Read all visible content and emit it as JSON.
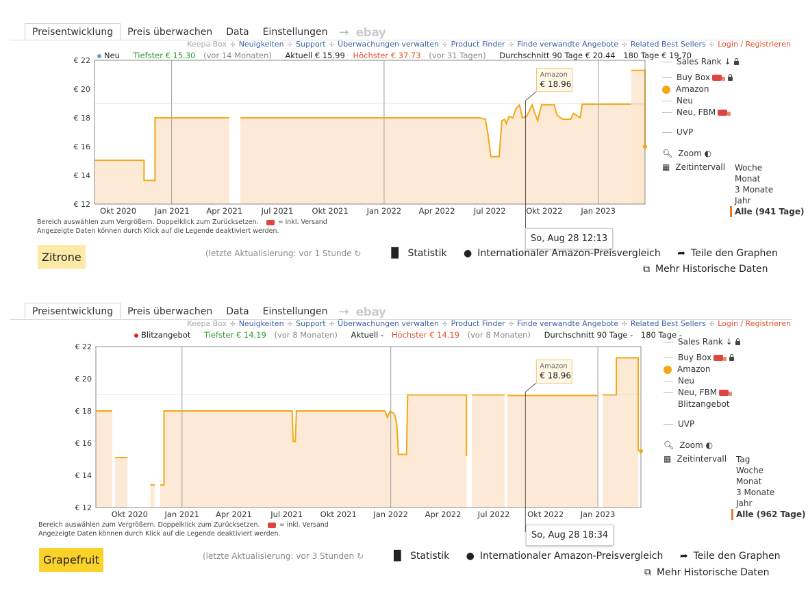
{
  "tabs": [
    "Preisentwicklung",
    "Preis überwachen",
    "Data",
    "Einstellungen"
  ],
  "tabs_extra": {
    "arrow": "→",
    "ebay": "ebay"
  },
  "links": {
    "keepa_box": "Keepa Box",
    "news": "Neuigkeiten",
    "support": "Support",
    "manage": "Überwachungen verwalten",
    "finder": "Product Finder",
    "related_offers": "Finde verwandte Angebote",
    "related_best": "Related Best Sellers",
    "login": "Login / Registrieren"
  },
  "legend_common": {
    "sales_rank": "Sales Rank",
    "buy_box": "Buy Box",
    "amazon": "Amazon",
    "neu": "Neu",
    "fbm": "Neu, FBM",
    "blitz": "Blitzangebot",
    "uvp": "UVP",
    "zoom": "Zoom",
    "zeitintervall": "Zeitintervall"
  },
  "hint": {
    "line1a": "Bereich auswählen zum Vergrößern. Doppelklick zum Zurücksetzen.",
    "line1b": "= inkl. Versand",
    "line2": "Angezeigte Daten können durch Klick auf die Legende deaktiviert werden."
  },
  "actions": {
    "statistik": "Statistik",
    "vergleich": "Internationaler Amazon-Preisvergleich",
    "teile": "Teile den Graphen",
    "mehr": "Mehr Historische Daten"
  },
  "colors": {
    "amazon": "#f3a712",
    "fill": "#fde3c8",
    "lowest": "#2e9c2e",
    "highest": "#e0502a"
  },
  "panels": [
    {
      "stats": {
        "series_label": "Neu",
        "lowest_label": "Tiefster € 15.30",
        "lowest_ago": "(vor 14 Monaten)",
        "current": "Aktuell € 15.99",
        "highest_label": "Höchster € 37.73",
        "highest_ago": "(vor 31 Tagen)",
        "avg90": "Durchschnitt 90 Tage € 20.44",
        "avg180": "180 Tage € 19.70"
      },
      "intervals": [
        "Woche",
        "Monat",
        "3 Monate",
        "Jahr"
      ],
      "interval_selected": "Alle (941 Tage)",
      "tooltip": {
        "label": "Amazon",
        "value": "€ 18.96"
      },
      "date": "So, Aug 28 12:13",
      "product_name": "Zitrone",
      "name_bg": "#fde9a8",
      "updated": "(letzte Aktualisierung: vor 1 Stunde",
      "chart_data": {
        "type": "line",
        "y_ticks": [
          "€ 22",
          "€ 20",
          "€ 18",
          "€ 16",
          "€ 14",
          "€ 12"
        ],
        "ylim": [
          12,
          22
        ],
        "x_ticks": [
          "Okt 2020",
          "Jan 2021",
          "Apr 2021",
          "Jul 2021",
          "Okt 2021",
          "Jan 2022",
          "Apr 2022",
          "Jul 2022",
          "Okt 2022",
          "Jan 2023"
        ],
        "series": [
          {
            "name": "Amazon",
            "segments": [
              [
                [
                  0.0,
                  15.05
                ],
                [
                  0.09,
                  15.05
                ],
                [
                  0.09,
                  13.65
                ],
                [
                  0.11,
                  13.65
                ],
                [
                  0.11,
                  18.0
                ],
                [
                  0.245,
                  18.0
                ]
              ],
              [
                [
                  0.265,
                  18.0
                ],
                [
                  0.7,
                  18.0
                ],
                [
                  0.71,
                  17.9
                ],
                [
                  0.715,
                  16.8
                ],
                [
                  0.72,
                  15.3
                ],
                [
                  0.735,
                  15.3
                ],
                [
                  0.74,
                  17.8
                ],
                [
                  0.745,
                  17.9
                ],
                [
                  0.748,
                  17.6
                ],
                [
                  0.753,
                  18.1
                ],
                [
                  0.76,
                  18.0
                ],
                [
                  0.765,
                  18.6
                ],
                [
                  0.772,
                  18.9
                ],
                [
                  0.777,
                  18.0
                ],
                [
                  0.785,
                  18.1
                ],
                [
                  0.795,
                  18.9
                ],
                [
                  0.8,
                  18.3
                ],
                [
                  0.805,
                  17.8
                ],
                [
                  0.812,
                  18.9
                ],
                [
                  0.835,
                  18.9
                ],
                [
                  0.84,
                  18.2
                ],
                [
                  0.85,
                  17.9
                ],
                [
                  0.865,
                  17.9
                ],
                [
                  0.87,
                  18.3
                ],
                [
                  0.882,
                  18.0
                ],
                [
                  0.886,
                  18.95
                ],
                [
                  1.0,
                  18.95
                ]
              ]
            ]
          }
        ],
        "right_segment": [
          [
            1.0,
            21.3
          ],
          [
            1.0,
            16.0
          ]
        ],
        "hover_x": 0.765
      }
    },
    {
      "stats": {
        "series_label": "Blitzangebot",
        "lowest_label": "Tiefster € 14.19",
        "lowest_ago": "(vor 8 Monaten)",
        "current": "Aktuell -",
        "highest_label": "Höchster € 14.19",
        "highest_ago": "(vor 8 Monaten)",
        "avg90": "Durchschnitt 90 Tage -",
        "avg180": "180 Tage -"
      },
      "intervals": [
        "Tag",
        "Woche",
        "Monat",
        "3 Monate",
        "Jahr"
      ],
      "interval_selected": "Alle (962 Tage)",
      "tooltip": {
        "label": "Amazon",
        "value": "€ 18.96"
      },
      "date": "So, Aug 28 18:34",
      "product_name": "Grapefruit",
      "name_bg": "#fbd22a",
      "updated": "(letzte Aktualisierung: vor 3 Stunden",
      "chart_data": {
        "type": "line",
        "y_ticks": [
          "€ 22",
          "€ 20",
          "€ 18",
          "€ 16",
          "€ 14",
          "€ 12"
        ],
        "ylim": [
          12,
          22
        ],
        "x_ticks": [
          "Okt 2020",
          "Jan 2021",
          "Apr 2021",
          "Jul 2021",
          "Okt 2021",
          "Jan 2022",
          "Apr 2022",
          "Jul 2022",
          "Okt 2022",
          "Jan 2023"
        ]
      }
    }
  ]
}
